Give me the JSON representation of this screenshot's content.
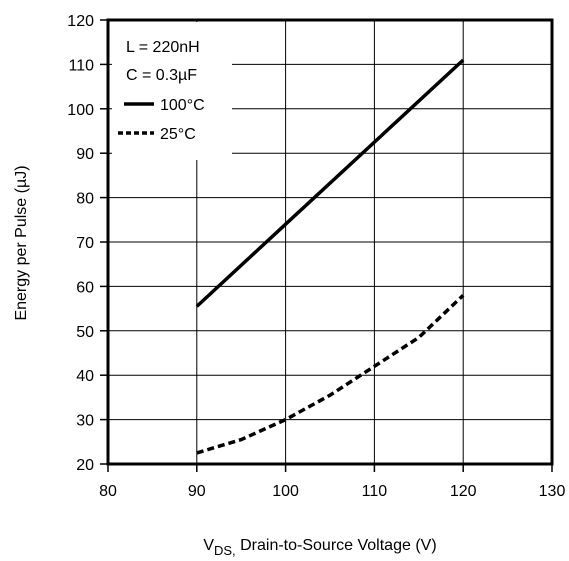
{
  "chart_data": {
    "type": "line",
    "title": "",
    "xlabel_main": "V",
    "xlabel_sub": "DS,",
    "xlabel_rest": " Drain-to-Source Voltage (V)",
    "ylabel": "Energy per Pulse (µJ)",
    "xlim": [
      80,
      130
    ],
    "ylim": [
      20,
      120
    ],
    "xticks": [
      80,
      90,
      100,
      110,
      120,
      130
    ],
    "yticks": [
      20,
      30,
      40,
      50,
      60,
      70,
      80,
      90,
      100,
      110,
      120
    ],
    "grid": true,
    "legend_placement": "top-left",
    "legend_header": [
      "L = 220nH",
      "C = 0.3µF"
    ],
    "series": [
      {
        "name": "100°C",
        "style": "solid",
        "x": [
          90,
          100,
          110,
          120
        ],
        "y": [
          55.5,
          74,
          92.5,
          111
        ]
      },
      {
        "name": "25°C",
        "style": "dashed",
        "x": [
          90,
          95,
          100,
          105,
          110,
          115,
          120
        ],
        "y": [
          22.5,
          25.5,
          30,
          35.5,
          42,
          48.5,
          58
        ]
      }
    ]
  }
}
